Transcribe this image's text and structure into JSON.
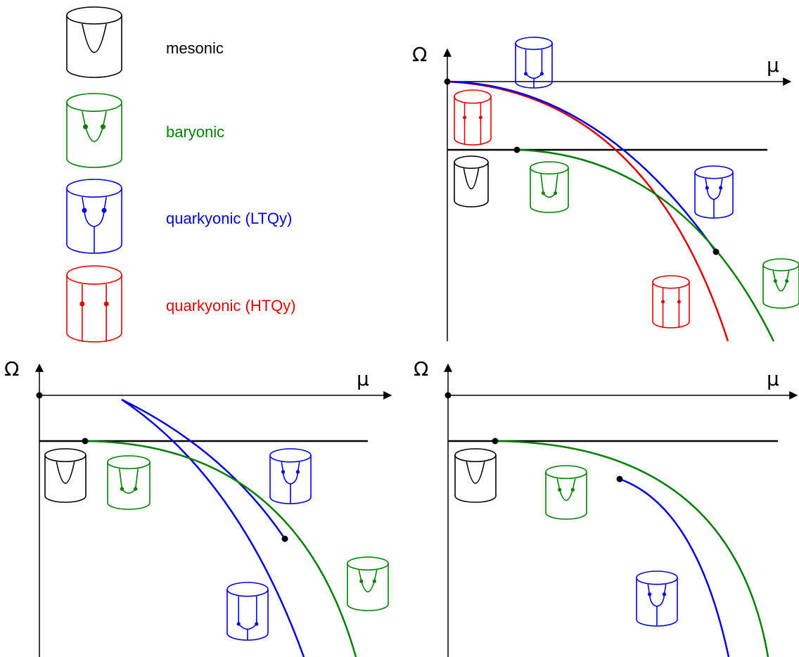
{
  "legend": {
    "items": [
      {
        "label": "mesonic",
        "color": "#000000",
        "kind": "mesonic"
      },
      {
        "label": "baryonic",
        "color": "#008000",
        "kind": "baryonic"
      },
      {
        "label": "quarkyonic (LTQy)",
        "color": "#0000e0",
        "kind": "ltqy"
      },
      {
        "label": "quarkyonic (HTQy)",
        "color": "#e00000",
        "kind": "htqy"
      }
    ]
  },
  "axes": {
    "y_symbol": "Ω",
    "x_symbol": "μ"
  },
  "colors": {
    "mesonic": "#000000",
    "baryonic": "#008000",
    "ltqy": "#0000e0",
    "htqy": "#e00000"
  },
  "panels": [
    {
      "id": "top-right",
      "phases": [
        "htqy",
        "ltqy",
        "mesonic",
        "baryonic"
      ]
    },
    {
      "id": "bottom-left",
      "phases": [
        "mesonic",
        "baryonic",
        "ltqy"
      ]
    },
    {
      "id": "bottom-right",
      "phases": [
        "mesonic",
        "baryonic",
        "ltqy"
      ]
    }
  ]
}
